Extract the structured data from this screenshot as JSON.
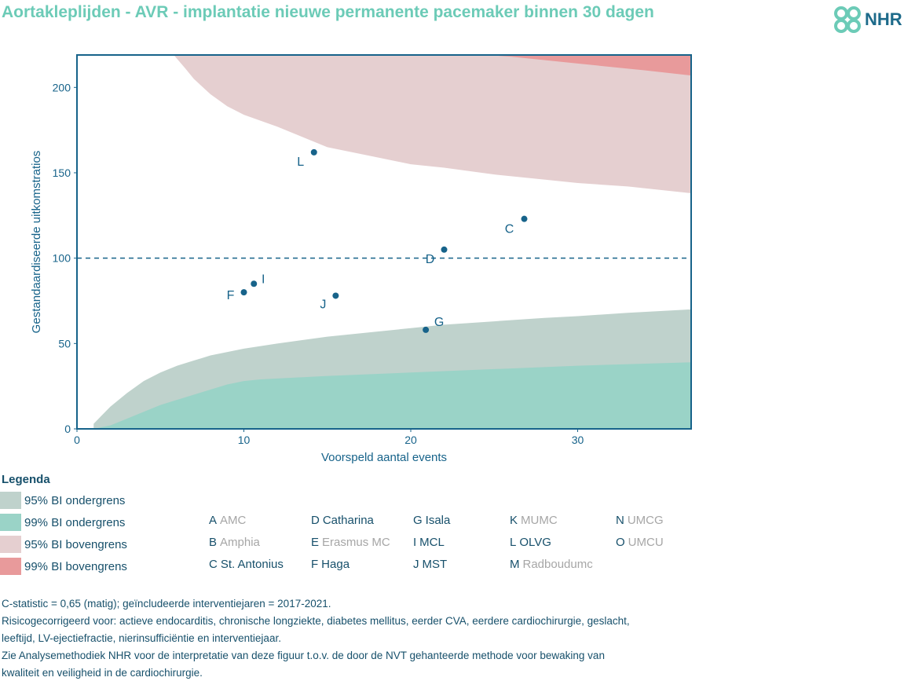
{
  "title": "Aortakleplijden - AVR - implantatie nieuwe permanente pacemaker binnen 30 dagen",
  "logo": {
    "text": "NHR",
    "icon": "nhr-heart-knot-icon"
  },
  "colors": {
    "title": "#6ccbb7",
    "axis": "#17506b",
    "point": "#17638a",
    "lower95": "#bfd2cc",
    "lower99": "#9ad3c7",
    "upper95": "#e5cfd0",
    "upper99": "#e89a9b",
    "inactive": "#a6a6a6"
  },
  "chart_data": {
    "type": "scatter",
    "xlabel": "Voorspeld aantal events",
    "ylabel": "Gestandaardiseerde uitkomstratios",
    "xlim": [
      0,
      36.8
    ],
    "ylim": [
      0,
      219
    ],
    "xticks": [
      0,
      10,
      20,
      30
    ],
    "yticks": [
      0,
      50,
      100,
      150,
      200
    ],
    "reference_line": 100,
    "points": [
      {
        "label": "L",
        "x": 14.2,
        "y": 162
      },
      {
        "label": "C",
        "x": 26.8,
        "y": 123
      },
      {
        "label": "D",
        "x": 22.0,
        "y": 105
      },
      {
        "label": "I",
        "x": 10.6,
        "y": 85
      },
      {
        "label": "F",
        "x": 10.0,
        "y": 80
      },
      {
        "label": "J",
        "x": 15.5,
        "y": 78
      },
      {
        "label": "G",
        "x": 20.9,
        "y": 58
      }
    ],
    "bands": {
      "lower_95": [
        [
          1,
          3
        ],
        [
          2,
          13
        ],
        [
          3,
          21
        ],
        [
          4,
          28
        ],
        [
          5,
          33
        ],
        [
          6,
          37
        ],
        [
          7,
          40
        ],
        [
          8,
          43
        ],
        [
          10,
          47
        ],
        [
          12,
          50
        ],
        [
          15,
          54
        ],
        [
          18,
          57
        ],
        [
          20,
          59
        ],
        [
          22,
          61
        ],
        [
          25,
          63
        ],
        [
          28,
          65
        ],
        [
          30,
          66
        ],
        [
          33,
          68
        ],
        [
          36.8,
          70
        ]
      ],
      "lower_99": [
        [
          1,
          0
        ],
        [
          2,
          2
        ],
        [
          3,
          6
        ],
        [
          4,
          10
        ],
        [
          5,
          14
        ],
        [
          6,
          17
        ],
        [
          7,
          20
        ],
        [
          8,
          23
        ],
        [
          9,
          26
        ],
        [
          10,
          28
        ],
        [
          11,
          29
        ],
        [
          15,
          31
        ],
        [
          20,
          33
        ],
        [
          25,
          35
        ],
        [
          30,
          37
        ],
        [
          36.8,
          39
        ]
      ],
      "upper_95": [
        [
          5.8,
          219
        ],
        [
          6.5,
          211
        ],
        [
          7,
          205
        ],
        [
          8,
          196
        ],
        [
          9,
          189
        ],
        [
          10,
          184
        ],
        [
          12,
          177
        ],
        [
          15,
          165
        ],
        [
          18,
          159
        ],
        [
          20,
          155
        ],
        [
          22,
          153
        ],
        [
          25,
          149
        ],
        [
          28,
          146
        ],
        [
          30,
          144
        ],
        [
          33,
          142
        ],
        [
          36.8,
          138
        ]
      ],
      "upper_99": [
        [
          24.5,
          219
        ],
        [
          26,
          218
        ],
        [
          28,
          216
        ],
        [
          30,
          214
        ],
        [
          32,
          212
        ],
        [
          34,
          210
        ],
        [
          36.8,
          207
        ]
      ]
    }
  },
  "legend": {
    "heading": "Legenda",
    "bands": [
      {
        "label": "95% BI ondergrens",
        "color": "#bfd2cc"
      },
      {
        "label": "99% BI ondergrens",
        "color": "#9ad3c7"
      },
      {
        "label": "95% BI bovengrens",
        "color": "#e5cfd0"
      },
      {
        "label": "99% BI bovengrens",
        "color": "#e89a9b"
      }
    ],
    "hospitals": [
      {
        "code": "A",
        "name": "AMC",
        "active": false
      },
      {
        "code": "B",
        "name": "Amphia",
        "active": false
      },
      {
        "code": "C",
        "name": "St. Antonius",
        "active": true
      },
      {
        "code": "D",
        "name": "Catharina",
        "active": true
      },
      {
        "code": "E",
        "name": "Erasmus MC",
        "active": false
      },
      {
        "code": "F",
        "name": "Haga",
        "active": true
      },
      {
        "code": "G",
        "name": "Isala",
        "active": true
      },
      {
        "code": "I",
        "name": "MCL",
        "active": true
      },
      {
        "code": "J",
        "name": "MST",
        "active": true
      },
      {
        "code": "K",
        "name": "MUMC",
        "active": false
      },
      {
        "code": "L",
        "name": "OLVG",
        "active": true
      },
      {
        "code": "M",
        "name": "Radboudumc",
        "active": false
      },
      {
        "code": "N",
        "name": "UMCG",
        "active": false
      },
      {
        "code": "O",
        "name": "UMCU",
        "active": false
      }
    ]
  },
  "footnotes": [
    "C-statistic = 0,65 (matig); geïncludeerde interventiejaren = 2017-2021.",
    "Risicogecorrigeerd voor: actieve endocarditis, chronische longziekte, diabetes mellitus, eerder CVA, eerdere cardiochirurgie, geslacht,",
    "leeftijd, LV-ejectiefractie, nierinsufficiëntie en interventiejaar.",
    "Zie Analysemethodiek NHR voor de interpretatie van deze figuur t.o.v. de door de NVT gehanteerde methode voor bewaking van",
    "kwaliteit en veiligheid in de cardiochirurgie."
  ]
}
